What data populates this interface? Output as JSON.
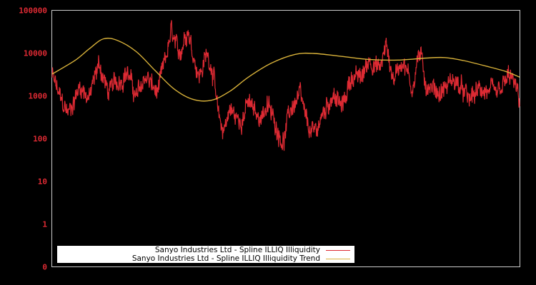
{
  "chart_data": {
    "type": "line",
    "title": "",
    "xlabel": "",
    "ylabel": "",
    "yscale": "log",
    "ylim": [
      0,
      100000
    ],
    "y_ticks": [
      "100000",
      "10000",
      "1000",
      "100",
      "10",
      "1",
      "0"
    ],
    "x_ticks": [],
    "grid": false,
    "legend_position": "lower-left",
    "series": [
      {
        "name": "Sanyo Industries Ltd - Spline ILLIQ Illiquidity",
        "color": "#dd2a33",
        "approx_points": [
          {
            "x": 0.0,
            "y": 3000
          },
          {
            "x": 0.02,
            "y": 700
          },
          {
            "x": 0.035,
            "y": 400
          },
          {
            "x": 0.06,
            "y": 1800
          },
          {
            "x": 0.08,
            "y": 900
          },
          {
            "x": 0.1,
            "y": 6000
          },
          {
            "x": 0.12,
            "y": 1200
          },
          {
            "x": 0.16,
            "y": 4000
          },
          {
            "x": 0.18,
            "y": 900
          },
          {
            "x": 0.2,
            "y": 3000
          },
          {
            "x": 0.225,
            "y": 1100
          },
          {
            "x": 0.24,
            "y": 5000
          },
          {
            "x": 0.255,
            "y": 30000
          },
          {
            "x": 0.27,
            "y": 8000
          },
          {
            "x": 0.29,
            "y": 45000
          },
          {
            "x": 0.3,
            "y": 12000
          },
          {
            "x": 0.315,
            "y": 3000
          },
          {
            "x": 0.33,
            "y": 9000
          },
          {
            "x": 0.335,
            "y": 8000
          },
          {
            "x": 0.345,
            "y": 4000
          },
          {
            "x": 0.355,
            "y": 300
          },
          {
            "x": 0.365,
            "y": 150
          },
          {
            "x": 0.38,
            "y": 500
          },
          {
            "x": 0.4,
            "y": 250
          },
          {
            "x": 0.42,
            "y": 700
          },
          {
            "x": 0.44,
            "y": 300
          },
          {
            "x": 0.46,
            "y": 600
          },
          {
            "x": 0.48,
            "y": 200
          },
          {
            "x": 0.495,
            "y": 90
          },
          {
            "x": 0.51,
            "y": 500
          },
          {
            "x": 0.53,
            "y": 1000
          },
          {
            "x": 0.545,
            "y": 200
          },
          {
            "x": 0.56,
            "y": 120
          },
          {
            "x": 0.575,
            "y": 300
          },
          {
            "x": 0.6,
            "y": 1200
          },
          {
            "x": 0.62,
            "y": 500
          },
          {
            "x": 0.64,
            "y": 3000
          },
          {
            "x": 0.66,
            "y": 2500
          },
          {
            "x": 0.68,
            "y": 8000
          },
          {
            "x": 0.7,
            "y": 4000
          },
          {
            "x": 0.715,
            "y": 15000
          },
          {
            "x": 0.73,
            "y": 2500
          },
          {
            "x": 0.75,
            "y": 8000
          },
          {
            "x": 0.77,
            "y": 1500
          },
          {
            "x": 0.785,
            "y": 11000
          },
          {
            "x": 0.8,
            "y": 2000
          },
          {
            "x": 0.83,
            "y": 1200
          },
          {
            "x": 0.86,
            "y": 2500
          },
          {
            "x": 0.89,
            "y": 800
          },
          {
            "x": 0.92,
            "y": 1500
          },
          {
            "x": 0.95,
            "y": 900
          },
          {
            "x": 0.98,
            "y": 3000
          },
          {
            "x": 1.0,
            "y": 800
          }
        ]
      },
      {
        "name": "Sanyo Industries Ltd - Spline ILLIQ Illiquidity Trend",
        "color": "#d9b23a",
        "approx_points": [
          {
            "x": 0.0,
            "y": 3300
          },
          {
            "x": 0.05,
            "y": 7000
          },
          {
            "x": 0.08,
            "y": 13000
          },
          {
            "x": 0.11,
            "y": 22000
          },
          {
            "x": 0.14,
            "y": 20000
          },
          {
            "x": 0.18,
            "y": 11000
          },
          {
            "x": 0.22,
            "y": 4000
          },
          {
            "x": 0.26,
            "y": 1500
          },
          {
            "x": 0.3,
            "y": 850
          },
          {
            "x": 0.34,
            "y": 800
          },
          {
            "x": 0.38,
            "y": 1300
          },
          {
            "x": 0.42,
            "y": 2800
          },
          {
            "x": 0.47,
            "y": 6000
          },
          {
            "x": 0.52,
            "y": 9500
          },
          {
            "x": 0.56,
            "y": 10000
          },
          {
            "x": 0.62,
            "y": 8500
          },
          {
            "x": 0.68,
            "y": 7200
          },
          {
            "x": 0.74,
            "y": 7000
          },
          {
            "x": 0.8,
            "y": 7800
          },
          {
            "x": 0.84,
            "y": 8000
          },
          {
            "x": 0.88,
            "y": 6800
          },
          {
            "x": 0.93,
            "y": 5000
          },
          {
            "x": 0.97,
            "y": 3800
          },
          {
            "x": 1.0,
            "y": 2800
          }
        ]
      }
    ]
  },
  "legend": {
    "items": [
      {
        "label": "Sanyo Industries Ltd - Spline ILLIQ Illiquidity",
        "color": "#dd2a33"
      },
      {
        "label": "Sanyo Industries Ltd - Spline ILLIQ Illiquidity Trend",
        "color": "#d9b23a"
      }
    ]
  },
  "colors": {
    "background": "#000000",
    "frame": "#cccccc",
    "tick_label": "#dd2a33"
  }
}
